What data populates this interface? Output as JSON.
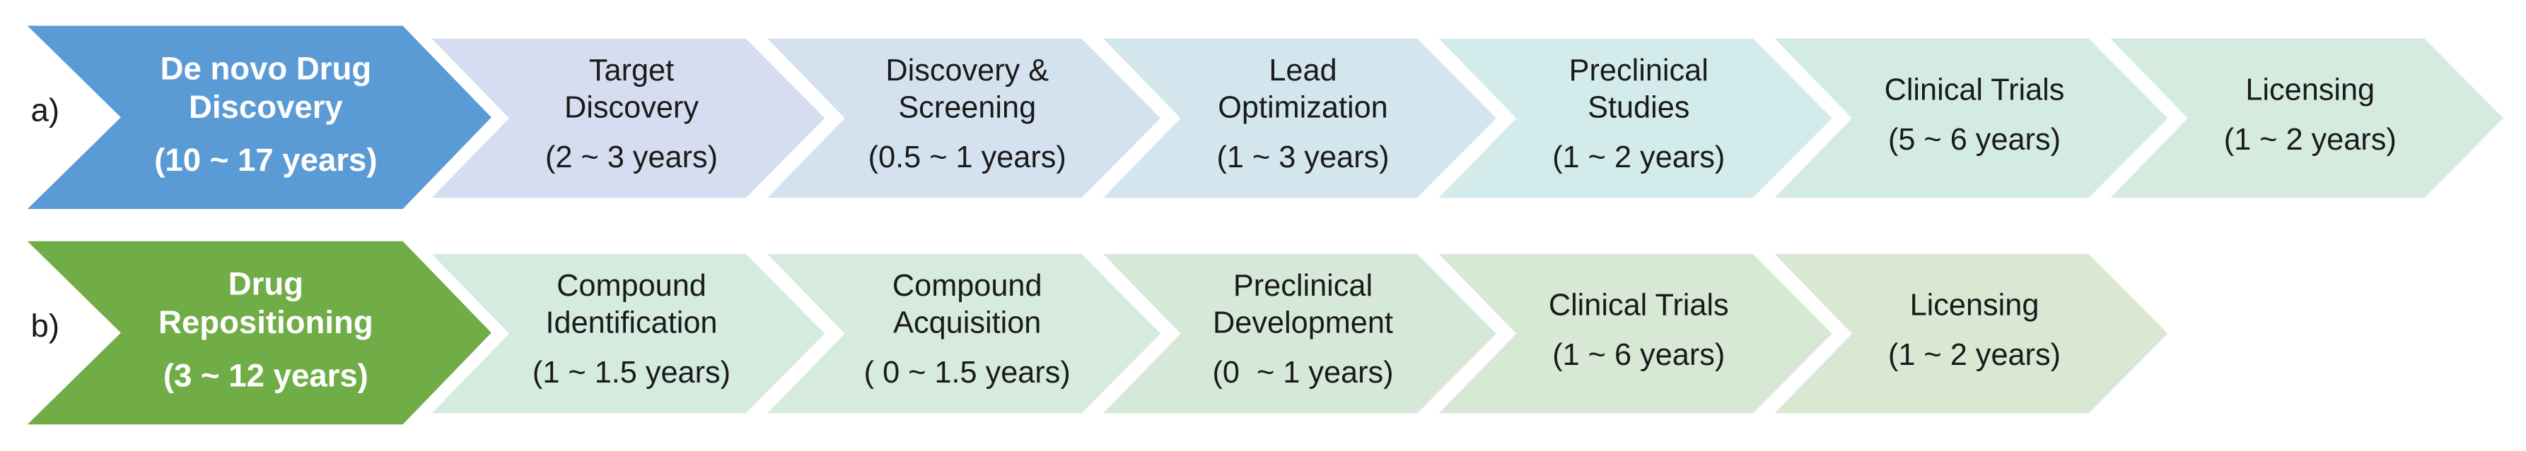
{
  "rows": [
    {
      "label": "a)",
      "head": {
        "title": [
          "De novo Drug",
          "Discovery"
        ],
        "duration": "(10 ~ 17 years)"
      },
      "steps": [
        {
          "title": [
            "Target",
            "Discovery"
          ],
          "duration": "(2 ~ 3 years)"
        },
        {
          "title": [
            "Discovery &",
            "Screening"
          ],
          "duration": "(0.5 ~ 1 years)"
        },
        {
          "title": [
            "Lead",
            "Optimization"
          ],
          "duration": "(1 ~ 3 years)"
        },
        {
          "title": [
            "Preclinical",
            "Studies"
          ],
          "duration": "(1 ~ 2 years)"
        },
        {
          "title": [
            "Clinical Trials"
          ],
          "duration": "(5 ~ 6 years)"
        },
        {
          "title": [
            "Licensing"
          ],
          "duration": "(1 ~ 2 years)"
        }
      ]
    },
    {
      "label": "b)",
      "head": {
        "title": [
          "Drug",
          "Repositioning"
        ],
        "duration": "(3 ~ 12 years)"
      },
      "steps": [
        {
          "title": [
            "Compound",
            "Identification"
          ],
          "duration": "(1 ~ 1.5 years)"
        },
        {
          "title": [
            "Compound",
            "Acquisition"
          ],
          "duration": "( 0 ~ 1.5 years)"
        },
        {
          "title": [
            "Preclinical",
            "Development"
          ],
          "duration": "(0  ~ 1 years)"
        },
        {
          "title": [
            "Clinical Trials"
          ],
          "duration": "(1 ~ 6 years)"
        },
        {
          "title": [
            "Licensing"
          ],
          "duration": "(1 ~ 2 years)"
        }
      ]
    }
  ]
}
